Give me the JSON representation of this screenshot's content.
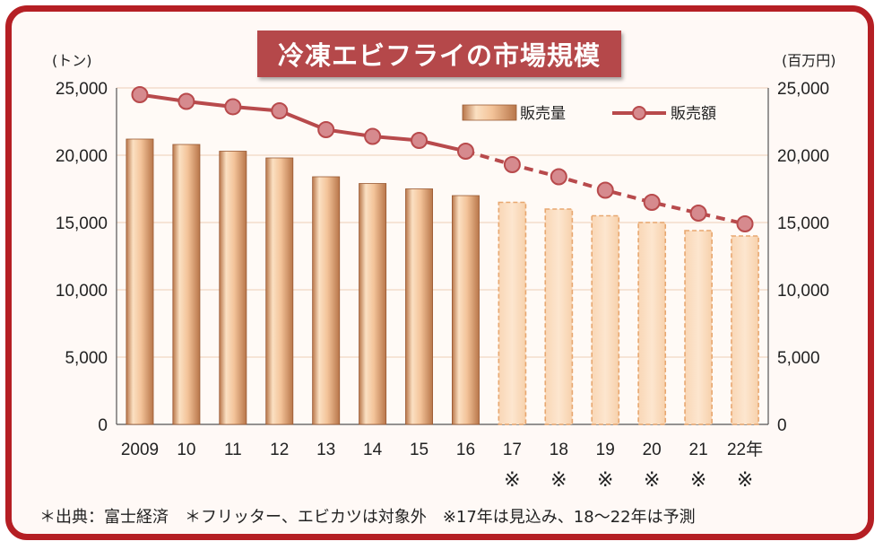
{
  "chart_data": {
    "type": "bar+line",
    "title": "冷凍エビフライの市場規模",
    "categories": [
      "2009",
      "10",
      "11",
      "12",
      "13",
      "14",
      "15",
      "16",
      "17",
      "18",
      "19",
      "20",
      "21",
      "22年"
    ],
    "estimate_markers": [
      "",
      "",
      "",
      "",
      "",
      "",
      "",
      "",
      "※",
      "※",
      "※",
      "※",
      "※",
      "※"
    ],
    "y_left": {
      "unit": "(トン)",
      "ticks": [
        "0",
        "5,000",
        "10,000",
        "15,000",
        "20,000",
        "25,000"
      ],
      "range": [
        0,
        25000
      ]
    },
    "y_right": {
      "unit": "(百万円)",
      "ticks": [
        "0",
        "5,000",
        "10,000",
        "15,000",
        "20,000",
        "25,000"
      ],
      "range": [
        0,
        25000
      ]
    },
    "series": [
      {
        "name": "販売量",
        "kind": "bar",
        "axis": "left",
        "values": [
          21200,
          20800,
          20300,
          19800,
          18400,
          17900,
          17500,
          17000,
          16500,
          16000,
          15500,
          15000,
          14400,
          14000
        ],
        "projected_from_index": 8
      },
      {
        "name": "販売額",
        "kind": "line",
        "axis": "right",
        "values": [
          24500,
          24000,
          23600,
          23300,
          21900,
          21400,
          21100,
          20300,
          19300,
          18400,
          17400,
          16500,
          15700,
          14900
        ],
        "projected_from_index": 8
      }
    ],
    "footnote": "＊出典：富士経済　＊フリッター、エビカツは対象外　※17年は見込み、18〜22年は予測",
    "colors": {
      "frame": "#b51f24",
      "title_bg": "#b5484a",
      "bar": "#e6ac7a",
      "line": "#b84a4c",
      "marker": "#d68a8e"
    }
  }
}
